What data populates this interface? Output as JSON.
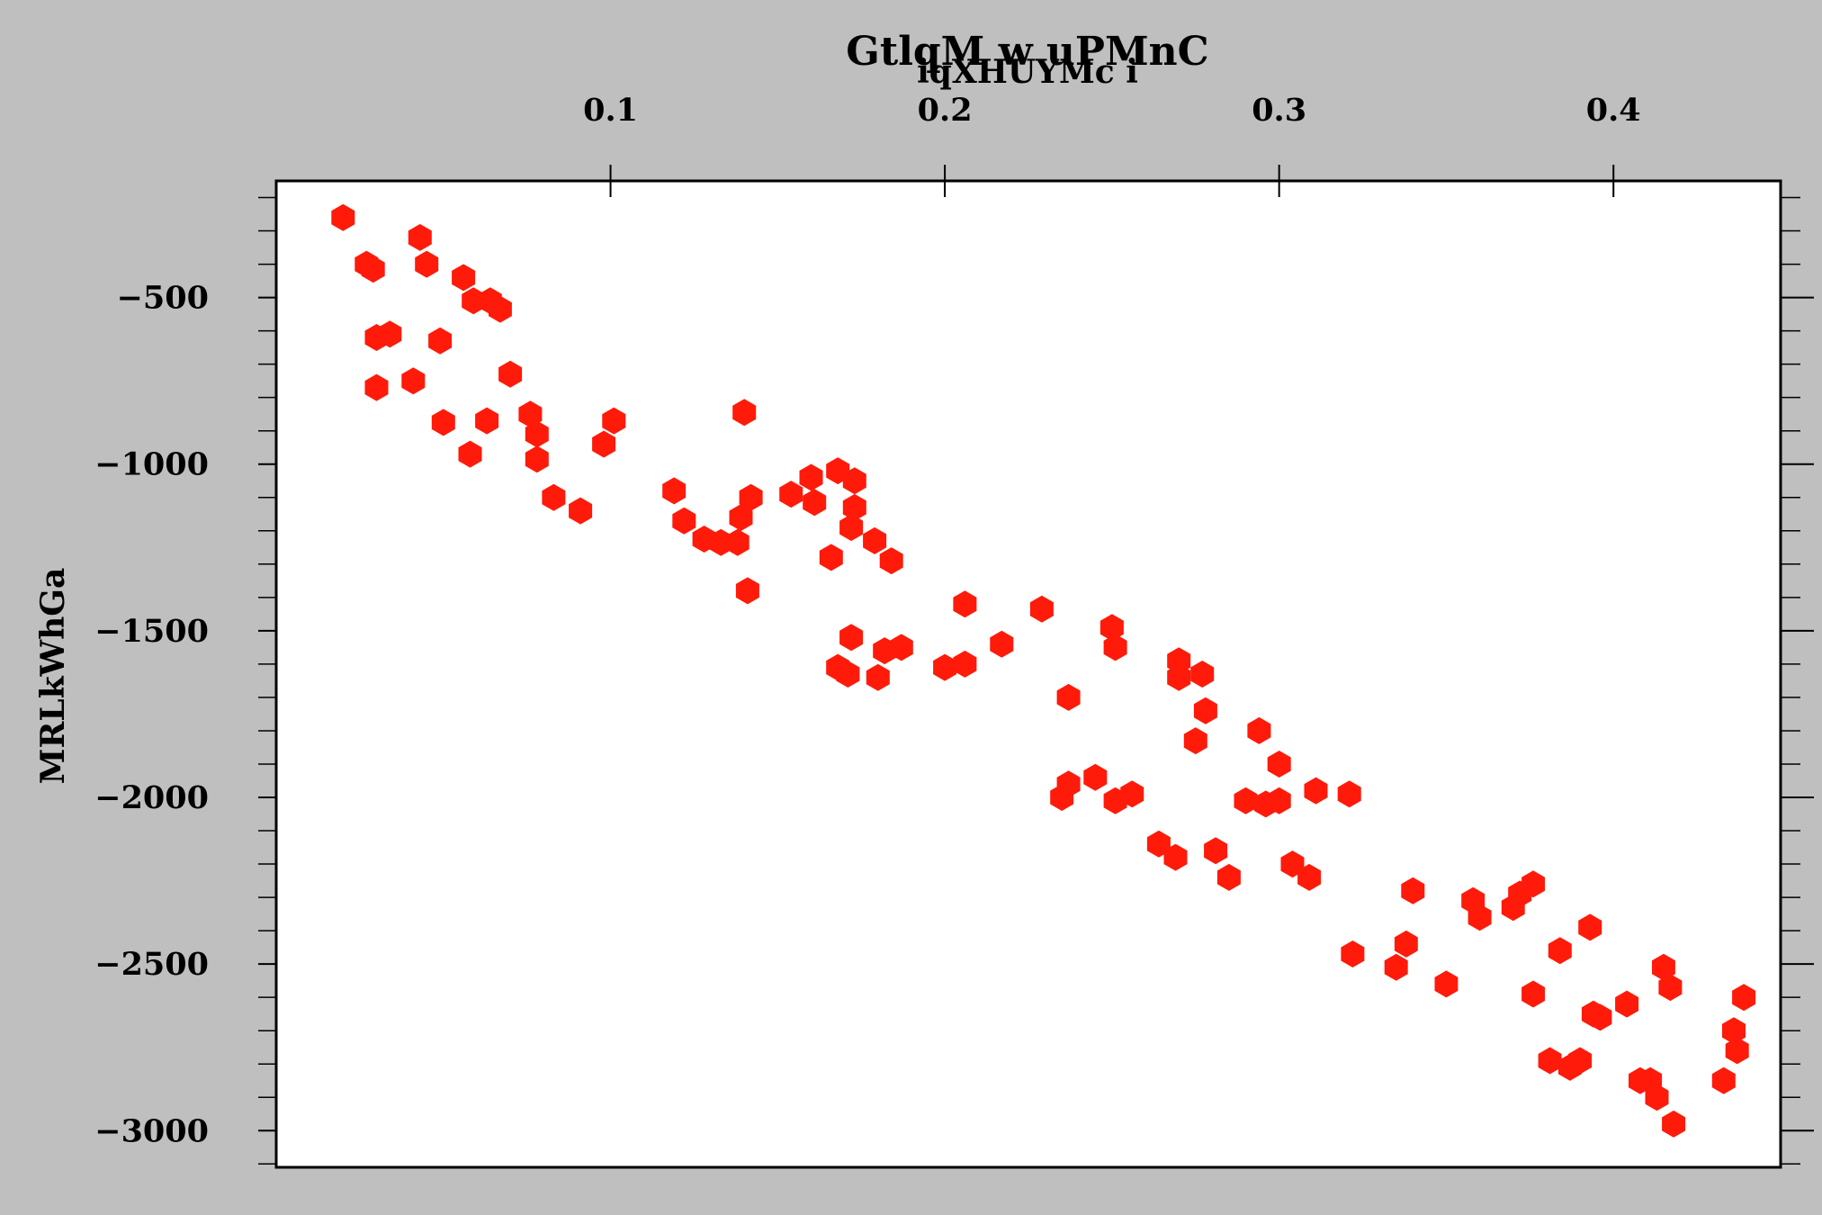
{
  "chart_data": {
    "type": "scatter",
    "title": "GtlqM  w uPMnC",
    "xlabel": "iqXHUYMc  i",
    "ylabel": "MRLkWhGa",
    "x_axis_position": "top",
    "xlim": [
      0.0,
      0.45
    ],
    "ylim": [
      -3110,
      -150
    ],
    "x_ticks": [
      0.1,
      0.2,
      0.3,
      0.4
    ],
    "x_tick_labels": [
      "0.1",
      "0.2",
      "0.3",
      "0.4"
    ],
    "y_ticks": [
      -500,
      -1000,
      -1500,
      -2000,
      -2500,
      -3000
    ],
    "y_tick_labels": [
      "−500",
      "−1000",
      "−1500",
      "−2000",
      "−2500",
      "−3000"
    ],
    "grid": false,
    "marker": "hexagon",
    "color": "#ff1a0a",
    "points": [
      [
        0.02,
        -260
      ],
      [
        0.027,
        -400
      ],
      [
        0.029,
        -415
      ],
      [
        0.03,
        -620
      ],
      [
        0.034,
        -610
      ],
      [
        0.03,
        -770
      ],
      [
        0.043,
        -320
      ],
      [
        0.045,
        -400
      ],
      [
        0.041,
        -750
      ],
      [
        0.049,
        -630
      ],
      [
        0.05,
        -875
      ],
      [
        0.056,
        -440
      ],
      [
        0.058,
        -970
      ],
      [
        0.059,
        -510
      ],
      [
        0.064,
        -510
      ],
      [
        0.067,
        -535
      ],
      [
        0.063,
        -870
      ],
      [
        0.07,
        -730
      ],
      [
        0.076,
        -850
      ],
      [
        0.078,
        -910
      ],
      [
        0.078,
        -985
      ],
      [
        0.083,
        -1100
      ],
      [
        0.091,
        -1140
      ],
      [
        0.098,
        -940
      ],
      [
        0.101,
        -870
      ],
      [
        0.119,
        -1080
      ],
      [
        0.122,
        -1170
      ],
      [
        0.128,
        -1225
      ],
      [
        0.133,
        -1235
      ],
      [
        0.138,
        -1235
      ],
      [
        0.139,
        -1160
      ],
      [
        0.14,
        -845
      ],
      [
        0.141,
        -1380
      ],
      [
        0.142,
        -1100
      ],
      [
        0.154,
        -1090
      ],
      [
        0.16,
        -1040
      ],
      [
        0.161,
        -1115
      ],
      [
        0.166,
        -1280
      ],
      [
        0.168,
        -1020
      ],
      [
        0.168,
        -1610
      ],
      [
        0.171,
        -1630
      ],
      [
        0.172,
        -1190
      ],
      [
        0.173,
        -1050
      ],
      [
        0.173,
        -1130
      ],
      [
        0.172,
        -1520
      ],
      [
        0.179,
        -1230
      ],
      [
        0.18,
        -1640
      ],
      [
        0.182,
        -1560
      ],
      [
        0.184,
        -1290
      ],
      [
        0.187,
        -1550
      ],
      [
        0.2,
        -1610
      ],
      [
        0.206,
        -1600
      ],
      [
        0.206,
        -1420
      ],
      [
        0.217,
        -1540
      ],
      [
        0.229,
        -1435
      ],
      [
        0.235,
        -2000
      ],
      [
        0.237,
        -1960
      ],
      [
        0.237,
        -1700
      ],
      [
        0.245,
        -1940
      ],
      [
        0.25,
        -1490
      ],
      [
        0.251,
        -1550
      ],
      [
        0.251,
        -2010
      ],
      [
        0.256,
        -1990
      ],
      [
        0.264,
        -2140
      ],
      [
        0.269,
        -2180
      ],
      [
        0.27,
        -1590
      ],
      [
        0.27,
        -1640
      ],
      [
        0.275,
        -1830
      ],
      [
        0.277,
        -1630
      ],
      [
        0.278,
        -1740
      ],
      [
        0.281,
        -2160
      ],
      [
        0.285,
        -2240
      ],
      [
        0.29,
        -2010
      ],
      [
        0.294,
        -1800
      ],
      [
        0.296,
        -2020
      ],
      [
        0.3,
        -1900
      ],
      [
        0.3,
        -2010
      ],
      [
        0.304,
        -2200
      ],
      [
        0.309,
        -2240
      ],
      [
        0.311,
        -1980
      ],
      [
        0.321,
        -1990
      ],
      [
        0.322,
        -2470
      ],
      [
        0.335,
        -2510
      ],
      [
        0.338,
        -2440
      ],
      [
        0.34,
        -2280
      ],
      [
        0.35,
        -2560
      ],
      [
        0.358,
        -2310
      ],
      [
        0.36,
        -2360
      ],
      [
        0.37,
        -2330
      ],
      [
        0.372,
        -2290
      ],
      [
        0.376,
        -2260
      ],
      [
        0.376,
        -2590
      ],
      [
        0.381,
        -2790
      ],
      [
        0.384,
        -2460
      ],
      [
        0.387,
        -2810
      ],
      [
        0.39,
        -2790
      ],
      [
        0.393,
        -2390
      ],
      [
        0.394,
        -2650
      ],
      [
        0.396,
        -2660
      ],
      [
        0.404,
        -2620
      ],
      [
        0.408,
        -2850
      ],
      [
        0.411,
        -2850
      ],
      [
        0.413,
        -2900
      ],
      [
        0.415,
        -2510
      ],
      [
        0.417,
        -2570
      ],
      [
        0.418,
        -2980
      ],
      [
        0.433,
        -2850
      ],
      [
        0.436,
        -2700
      ],
      [
        0.437,
        -2760
      ],
      [
        0.439,
        -2600
      ]
    ]
  }
}
